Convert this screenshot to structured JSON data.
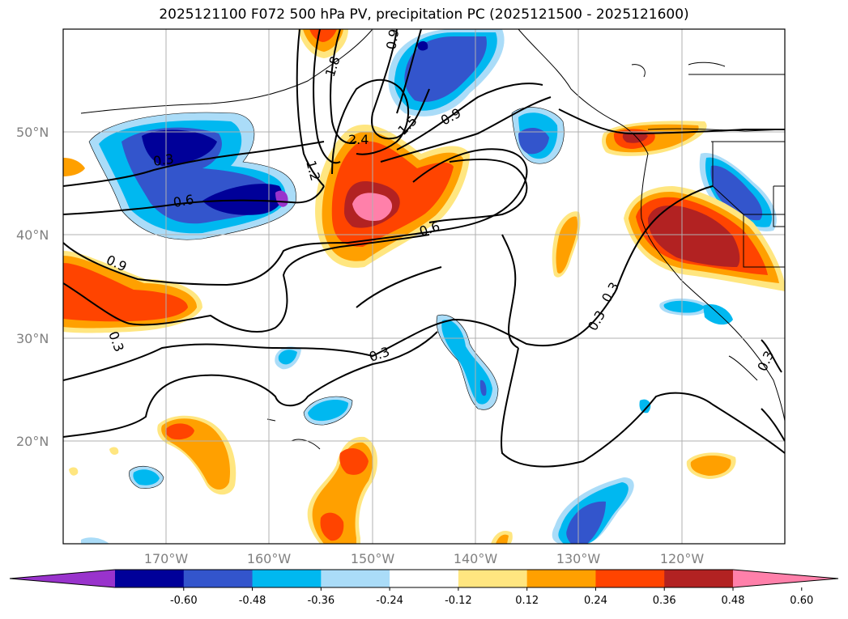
{
  "title": "2025121100 F072 500 hPa PV, precipitation PC (2025121500 - 2025121600)",
  "map": {
    "lat_labels": [
      "50°N",
      "40°N",
      "30°N",
      "20°N"
    ],
    "lon_labels": [
      "170°W",
      "160°W",
      "150°W",
      "140°W",
      "130°W",
      "120°W"
    ],
    "contour_labels": [
      "2.4",
      "1.8",
      "1.5",
      "1.2",
      "0.9",
      "0.9",
      "0.6",
      "0.6",
      "0.3",
      "0.3",
      "0.3",
      "0.3",
      "0.3",
      "0.9",
      "0.3"
    ]
  },
  "colorbar": {
    "ticks": [
      "-0.60",
      "-0.48",
      "-0.36",
      "-0.24",
      "-0.12",
      "0.12",
      "0.24",
      "0.36",
      "0.48",
      "0.60"
    ],
    "colors": [
      "#9933cc",
      "#000099",
      "#3355cc",
      "#00b8f0",
      "#aadcf8",
      "#ffffff",
      "#ffe680",
      "#ffa000",
      "#ff4400",
      "#b22222",
      "#ff80aa"
    ]
  },
  "legend_colors": {
    "neg_extreme": "#9933cc",
    "neg_strong": "#000099",
    "neg_mid": "#3355cc",
    "neg_low": "#00b8f0",
    "neg_weak": "#aadcf8",
    "pos_weak": "#ffe680",
    "pos_low": "#ffa000",
    "pos_mid": "#ff4400",
    "pos_strong": "#b22222",
    "pos_extreme": "#ff80aa"
  }
}
